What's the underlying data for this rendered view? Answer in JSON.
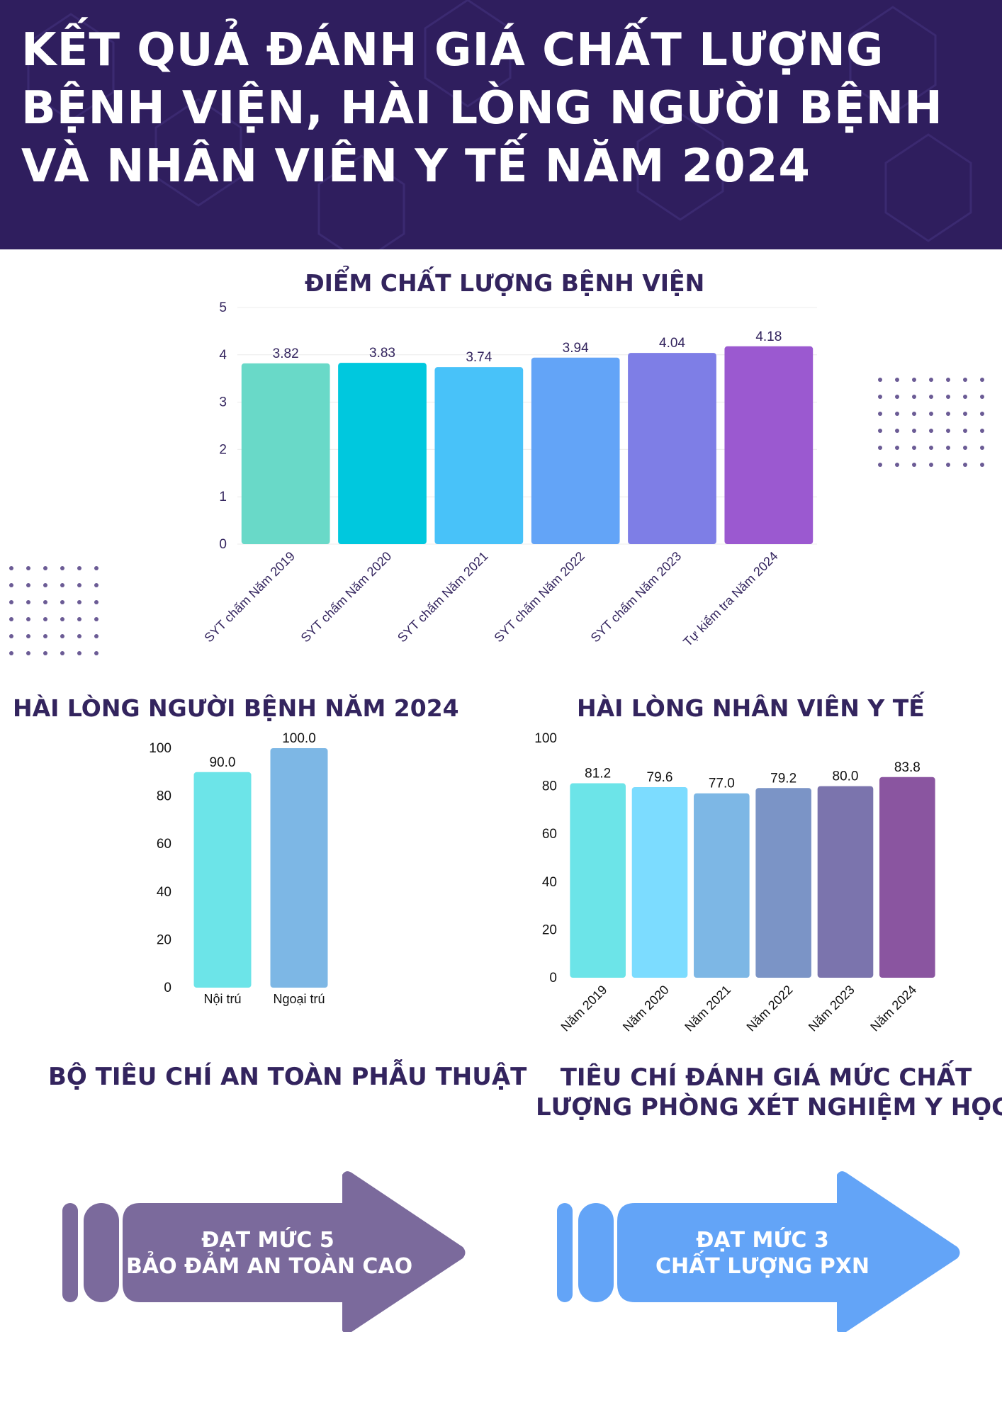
{
  "title": "KẾT QUẢ ĐÁNH GIÁ CHẤT LƯỢNG BỆNH VIỆN, HÀI LÒNG NGƯỜI BỆNH VÀ NHÂN VIÊN Y TẾ NĂM 2024",
  "colors": {
    "header_bg": "#2f1e5e",
    "title_text": "#ffffff",
    "section_title": "#33245e",
    "dots": "#6b5b95",
    "arrow_left": "#7b6a9c",
    "arrow_right": "#63a4f7"
  },
  "sections": {
    "quality": {
      "title": "ĐIỂM CHẤT LƯỢNG BỆNH VIỆN"
    },
    "patient": {
      "title": "HÀI LÒNG NGƯỜI BỆNH NĂM 2024"
    },
    "staff": {
      "title": "HÀI LÒNG NHÂN VIÊN Y TẾ"
    },
    "surgery": {
      "title": "BỘ TIÊU CHÍ AN TOÀN PHẪU THUẬT",
      "badge_line1": "ĐẠT MỨC 5",
      "badge_line2": "BẢO ĐẢM AN TOÀN CAO"
    },
    "lab": {
      "title_line1": "TIÊU CHÍ ĐÁNH GIÁ MỨC CHẤT",
      "title_line2": "LƯỢNG PHÒNG XÉT NGHIỆM Y HỌC",
      "badge_line1": "ĐẠT MỨC 3",
      "badge_line2": "CHẤT LƯỢNG PXN"
    }
  },
  "chart_data": [
    {
      "type": "bar",
      "title": "ĐIỂM CHẤT LƯỢNG BỆNH VIỆN",
      "categories": [
        "SYT chấm Năm 2019",
        "SYT chấm Năm 2020",
        "SYT chấm Năm 2021",
        "SYT chấm Năm 2022",
        "SYT chấm Năm 2023",
        "Tự kiểm tra Năm 2024"
      ],
      "values": [
        3.82,
        3.83,
        3.74,
        3.94,
        4.04,
        4.18
      ],
      "data_labels": [
        "3.82",
        "3.83",
        "3.74",
        "3.94",
        "4.04",
        "4.18"
      ],
      "ylim": [
        0,
        5
      ],
      "yticks": [
        0,
        1,
        2,
        3,
        4,
        5
      ],
      "colors": [
        "#69d9c8",
        "#00c8de",
        "#48c2f9",
        "#63a4f7",
        "#7e7ee6",
        "#9b59d0"
      ],
      "grid": true,
      "xlabel": "",
      "ylabel": ""
    },
    {
      "type": "bar",
      "title": "HÀI LÒNG NGƯỜI BỆNH NĂM 2024",
      "categories": [
        "Nội trú",
        "Ngoại trú"
      ],
      "values": [
        90.0,
        100.0
      ],
      "data_labels": [
        "90.0",
        "100.0"
      ],
      "ylim": [
        0,
        100
      ],
      "yticks": [
        0,
        20,
        40,
        60,
        80,
        100
      ],
      "colors": [
        "#6ce4e8",
        "#7db7e5"
      ],
      "grid": false,
      "xlabel": "",
      "ylabel": ""
    },
    {
      "type": "bar",
      "title": "HÀI LÒNG NHÂN VIÊN Y TẾ",
      "categories": [
        "Năm 2019",
        "Năm 2020",
        "Năm 2021",
        "Năm 2022",
        "Năm 2023",
        "Năm 2024"
      ],
      "values": [
        81.2,
        79.6,
        77.0,
        79.2,
        80.0,
        83.8
      ],
      "data_labels": [
        "81.2",
        "79.6",
        "77.0",
        "79.2",
        "80.0",
        "83.8"
      ],
      "ylim": [
        0,
        100
      ],
      "yticks": [
        0,
        20,
        40,
        60,
        80,
        100
      ],
      "colors": [
        "#6ce4e8",
        "#7cdcff",
        "#7db7e5",
        "#7b94c6",
        "#7b74ad",
        "#8a55a0"
      ],
      "grid": false,
      "xlabel": "",
      "ylabel": ""
    }
  ]
}
